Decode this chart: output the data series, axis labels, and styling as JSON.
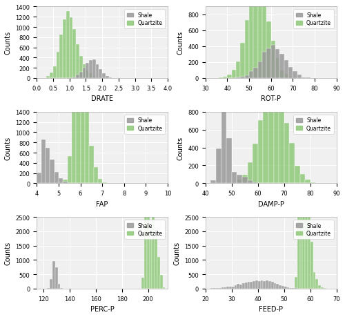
{
  "shale_color": "#999999",
  "quartzite_color": "#90c97a",
  "background_color": "#f0f0f0",
  "grid_color": "white",
  "subplots": [
    {
      "xlabel": "DRATE",
      "xlim": [
        0.0,
        4.0
      ],
      "xticks": [
        0.0,
        0.5,
        1.0,
        1.5,
        2.0,
        2.5,
        3.0,
        3.5,
        4.0
      ],
      "ylim": [
        0,
        1400
      ],
      "yticks": [
        0,
        200,
        400,
        600,
        800,
        1000,
        1200,
        1400
      ],
      "n_bins": 40
    },
    {
      "xlabel": "ROT-P",
      "xlim": [
        30,
        90
      ],
      "xticks": [
        30,
        40,
        50,
        60,
        70,
        80,
        90
      ],
      "ylim": [
        0,
        900
      ],
      "yticks": [
        0,
        200,
        400,
        600,
        800
      ],
      "n_bins": 30
    },
    {
      "xlabel": "FAP",
      "xlim": [
        4,
        10
      ],
      "xticks": [
        4,
        5,
        6,
        7,
        8,
        9,
        10
      ],
      "ylim": [
        0,
        1400
      ],
      "yticks": [
        0,
        200,
        400,
        600,
        800,
        1000,
        1200,
        1400
      ],
      "n_bins": 30
    },
    {
      "xlabel": "DAMP-P",
      "xlim": [
        40,
        90
      ],
      "xticks": [
        40,
        50,
        60,
        70,
        80,
        90
      ],
      "ylim": [
        0,
        800
      ],
      "yticks": [
        0,
        200,
        400,
        600,
        800
      ],
      "n_bins": 25
    },
    {
      "xlabel": "PERC-P",
      "xlim": [
        115,
        215
      ],
      "xticks": [
        120,
        140,
        160,
        180,
        200
      ],
      "ylim": [
        0,
        2500
      ],
      "yticks": [
        0,
        500,
        1000,
        1500,
        2000,
        2500
      ],
      "n_bins": 50
    },
    {
      "xlabel": "FEED-P",
      "xlim": [
        20,
        70
      ],
      "xticks": [
        20,
        30,
        40,
        50,
        60,
        70
      ],
      "ylim": [
        0,
        2500
      ],
      "yticks": [
        0,
        500,
        1000,
        1500,
        2000,
        2500
      ],
      "n_bins": 50
    }
  ]
}
